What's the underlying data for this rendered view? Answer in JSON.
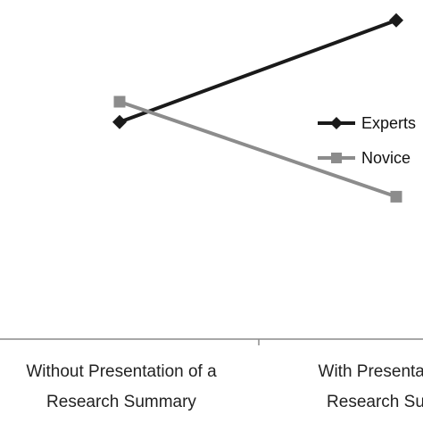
{
  "chart_data": {
    "type": "line",
    "categories": [
      [
        "Without Presentation of a",
        "Research Summary"
      ],
      [
        "With Presentation of a",
        "Research Summary"
      ]
    ],
    "series": [
      {
        "name": "Experts",
        "values": [
          3.2,
          4.7
        ],
        "color": "#1a1a1a",
        "marker": "diamond"
      },
      {
        "name": "Novice",
        "values": [
          3.5,
          2.1
        ],
        "color": "#8c8c8c",
        "marker": "square"
      }
    ],
    "ylim": [
      0,
      5
    ],
    "grid": false,
    "legend": "right",
    "axis_color": "#8c8c8c"
  }
}
